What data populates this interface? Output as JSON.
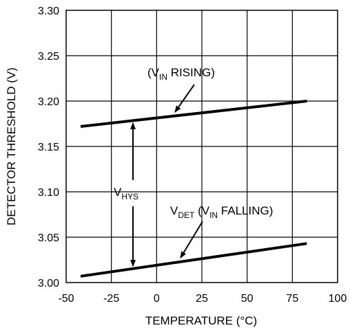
{
  "chart_data": {
    "type": "line",
    "xlabel": "TEMPERATURE (°C)",
    "ylabel": "DETECTOR THRESHOLD (V)",
    "xlim": [
      -50,
      100
    ],
    "ylim": [
      3.0,
      3.3
    ],
    "x_ticks": [
      "-50",
      "-25",
      "0",
      "25",
      "50",
      "75",
      "100"
    ],
    "y_ticks": [
      "3.00",
      "3.05",
      "3.10",
      "3.15",
      "3.20",
      "3.25",
      "3.30"
    ],
    "grid": true,
    "series": [
      {
        "name": "(VIN RISING)",
        "x": [
          -42,
          83
        ],
        "y": [
          3.172,
          3.2
        ]
      },
      {
        "name": "VDET (VIN FALLING)",
        "x": [
          -42,
          83
        ],
        "y": [
          3.007,
          3.043
        ]
      }
    ],
    "annotations": {
      "rising": {
        "pre": "(V",
        "sub": "IN",
        "post": " RISING)"
      },
      "falling": {
        "v": "V",
        "sub1": "DET",
        "mid": " (V",
        "sub2": "IN",
        "post": " FALLING)"
      },
      "hys": {
        "v": "V",
        "sub": "HYS"
      }
    }
  }
}
